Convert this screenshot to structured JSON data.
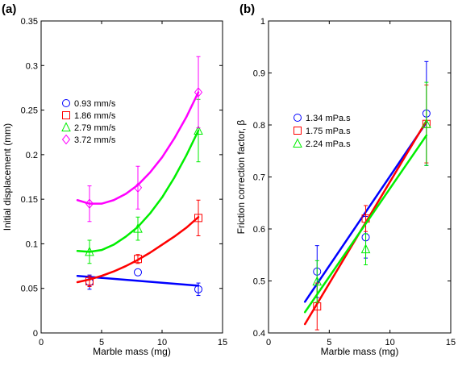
{
  "chart_data": [
    {
      "panel_label": "(a)",
      "type": "line",
      "xlabel": "Marble mass (mg)",
      "ylabel": "Initial displacement (mm)",
      "xlim": [
        0,
        15
      ],
      "ylim": [
        0,
        0.35
      ],
      "xticks": [
        0,
        5,
        10,
        15
      ],
      "yticks": [
        0,
        0.05,
        0.1,
        0.15,
        0.2,
        0.25,
        0.3,
        0.35
      ],
      "ytick_labels": [
        "0",
        "0.05",
        "0.1",
        "0.15",
        "0.2",
        "0.25",
        "0.3",
        "0.35"
      ],
      "grid": false,
      "legend_position": "upper-left",
      "series": [
        {
          "name": "0.93 mm/s",
          "color": "#0000ff",
          "marker": "circle",
          "points": [
            {
              "x": 4,
              "y": 0.057,
              "err": 0.008
            },
            {
              "x": 8,
              "y": 0.068,
              "err": 0.0
            },
            {
              "x": 13,
              "y": 0.049,
              "err": 0.007
            }
          ],
          "fit": [
            [
              3,
              0.064
            ],
            [
              13,
              0.053
            ]
          ]
        },
        {
          "name": "1.86 mm/s",
          "color": "#ff0000",
          "marker": "square",
          "points": [
            {
              "x": 4,
              "y": 0.058,
              "err": 0.006
            },
            {
              "x": 8,
              "y": 0.083,
              "err": 0.005
            },
            {
              "x": 13,
              "y": 0.129,
              "err": 0.02
            }
          ],
          "fit": [
            [
              3,
              0.057
            ],
            [
              4,
              0.06
            ],
            [
              5,
              0.064
            ],
            [
              6,
              0.069
            ],
            [
              7,
              0.075
            ],
            [
              8,
              0.082
            ],
            [
              9,
              0.09
            ],
            [
              10,
              0.099
            ],
            [
              11,
              0.108
            ],
            [
              12,
              0.118
            ],
            [
              13,
              0.13
            ]
          ]
        },
        {
          "name": "2.79 mm/s",
          "color": "#00ee00",
          "marker": "triangle",
          "points": [
            {
              "x": 4,
              "y": 0.091,
              "err": 0.013
            },
            {
              "x": 8,
              "y": 0.117,
              "err": 0.013
            },
            {
              "x": 13,
              "y": 0.227,
              "err": 0.035
            }
          ],
          "fit": [
            [
              3,
              0.092
            ],
            [
              4,
              0.091
            ],
            [
              5,
              0.093
            ],
            [
              6,
              0.099
            ],
            [
              7,
              0.108
            ],
            [
              8,
              0.119
            ],
            [
              9,
              0.134
            ],
            [
              10,
              0.152
            ],
            [
              11,
              0.174
            ],
            [
              12,
              0.199
            ],
            [
              13,
              0.227
            ]
          ]
        },
        {
          "name": "3.72 mm/s",
          "color": "#ff00ff",
          "marker": "diamond",
          "points": [
            {
              "x": 4,
              "y": 0.145,
              "err": 0.02
            },
            {
              "x": 8,
              "y": 0.163,
              "err": 0.024
            },
            {
              "x": 13,
              "y": 0.27,
              "err": 0.04
            }
          ],
          "fit": [
            [
              3,
              0.149
            ],
            [
              4,
              0.145
            ],
            [
              5,
              0.145
            ],
            [
              6,
              0.149
            ],
            [
              7,
              0.156
            ],
            [
              8,
              0.166
            ],
            [
              9,
              0.18
            ],
            [
              10,
              0.197
            ],
            [
              11,
              0.218
            ],
            [
              12,
              0.242
            ],
            [
              13,
              0.27
            ]
          ]
        }
      ]
    },
    {
      "panel_label": "(b)",
      "type": "line",
      "xlabel": "Marble mass (mg)",
      "ylabel": "Friction correction factor, β",
      "xlim": [
        0,
        15
      ],
      "ylim": [
        0.4,
        1
      ],
      "xticks": [
        0,
        5,
        10,
        15
      ],
      "yticks": [
        0.4,
        0.5,
        0.6,
        0.7,
        0.8,
        0.9,
        1
      ],
      "ytick_labels": [
        "0.4",
        "0.5",
        "0.6",
        "0.7",
        "0.8",
        "0.9",
        "1"
      ],
      "grid": false,
      "legend_position": "upper-left",
      "series": [
        {
          "name": "1.34 mPa.s",
          "color": "#0000ff",
          "marker": "circle",
          "points": [
            {
              "x": 4,
              "y": 0.518,
              "err": 0.05
            },
            {
              "x": 8,
              "y": 0.584,
              "err": 0.04
            },
            {
              "x": 13,
              "y": 0.822,
              "err": 0.1
            }
          ],
          "fit": [
            [
              3,
              0.46
            ],
            [
              13,
              0.805
            ]
          ]
        },
        {
          "name": "1.75 mPa.s",
          "color": "#ff0000",
          "marker": "square",
          "points": [
            {
              "x": 4,
              "y": 0.451,
              "err": 0.045
            },
            {
              "x": 8,
              "y": 0.62,
              "err": 0.025
            },
            {
              "x": 13,
              "y": 0.802,
              "err": 0.075
            }
          ],
          "fit": [
            [
              3,
              0.417
            ],
            [
              13,
              0.808
            ]
          ]
        },
        {
          "name": "2.24 mPa.s",
          "color": "#00ee00",
          "marker": "triangle",
          "points": [
            {
              "x": 4,
              "y": 0.499,
              "err": 0.04
            },
            {
              "x": 8,
              "y": 0.561,
              "err": 0.03
            },
            {
              "x": 13,
              "y": 0.802,
              "err": 0.08
            }
          ],
          "fit": [
            [
              3,
              0.44
            ],
            [
              13,
              0.78
            ]
          ]
        }
      ]
    }
  ]
}
